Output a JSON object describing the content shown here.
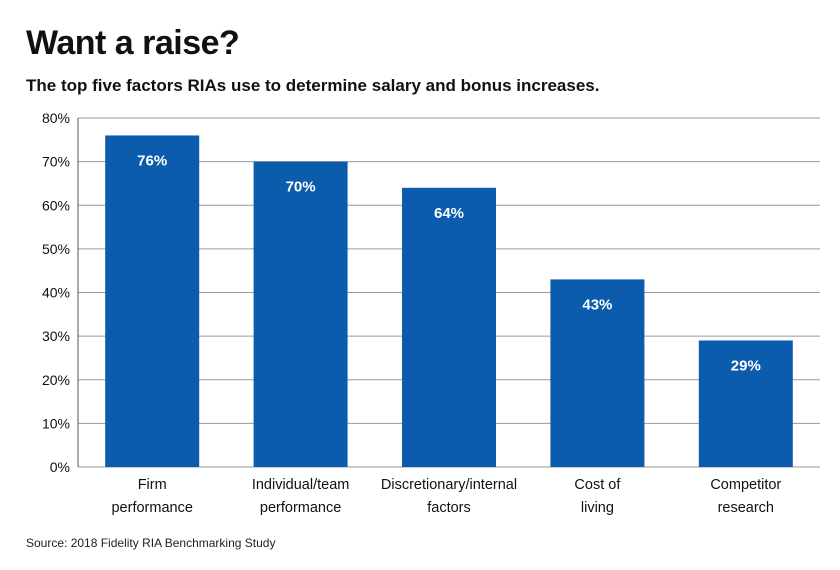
{
  "title": "Want a raise?",
  "subtitle": "The top five factors RIAs use to determine salary and bonus increases.",
  "source": "Source: 2018 Fidelity RIA Benchmarking Study",
  "chart_data": {
    "type": "bar",
    "categories": [
      [
        "Firm",
        "performance"
      ],
      [
        "Individual/team",
        "performance"
      ],
      [
        "Discretionary/internal",
        "factors"
      ],
      [
        "Cost of",
        "living"
      ],
      [
        "Competitor",
        "research"
      ]
    ],
    "values": [
      76,
      70,
      64,
      43,
      29
    ],
    "value_labels": [
      "76%",
      "70%",
      "64%",
      "43%",
      "29%"
    ],
    "ylim": [
      0,
      80
    ],
    "yticks": [
      0,
      10,
      20,
      30,
      40,
      50,
      60,
      70,
      80
    ],
    "ytick_labels": [
      "0%",
      "10%",
      "20%",
      "30%",
      "40%",
      "50%",
      "60%",
      "70%",
      "80%"
    ],
    "grid": true,
    "bar_color": "#0b5cad",
    "grid_color": "#9a9a9a"
  }
}
